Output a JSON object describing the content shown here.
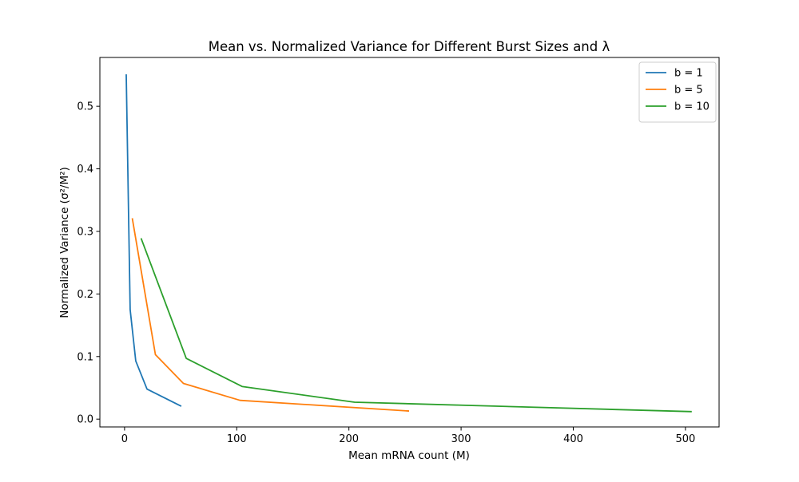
{
  "chart_data": {
    "type": "line",
    "title": "Mean vs. Normalized Variance for Different Burst Sizes and λ",
    "xlabel": "Mean mRNA count (M)",
    "ylabel": "Normalized Variance (σ²/M²)",
    "xlim": [
      -22,
      530
    ],
    "ylim": [
      -0.0125,
      0.578
    ],
    "xticks": [
      0,
      100,
      200,
      300,
      400,
      500
    ],
    "yticks": [
      0.0,
      0.1,
      0.2,
      0.3,
      0.4,
      0.5
    ],
    "xtick_labels": [
      "0",
      "100",
      "200",
      "300",
      "400",
      "500"
    ],
    "ytick_labels": [
      "0.0",
      "0.1",
      "0.2",
      "0.3",
      "0.4",
      "0.5"
    ],
    "grid": false,
    "legend_position": "top-right",
    "series": [
      {
        "name": "b = 1",
        "color": "#1f77b4",
        "x": [
          1.5,
          5,
          10,
          20,
          50
        ],
        "y": [
          0.55,
          0.175,
          0.093,
          0.048,
          0.021
        ]
      },
      {
        "name": "b = 5",
        "color": "#ff7f0e",
        "x": [
          7,
          27.5,
          52.5,
          103,
          253
        ],
        "y": [
          0.32,
          0.103,
          0.057,
          0.03,
          0.013
        ]
      },
      {
        "name": "b = 10",
        "color": "#2ca02c",
        "x": [
          15,
          55,
          105,
          205,
          505
        ],
        "y": [
          0.288,
          0.097,
          0.052,
          0.027,
          0.012
        ]
      }
    ]
  }
}
